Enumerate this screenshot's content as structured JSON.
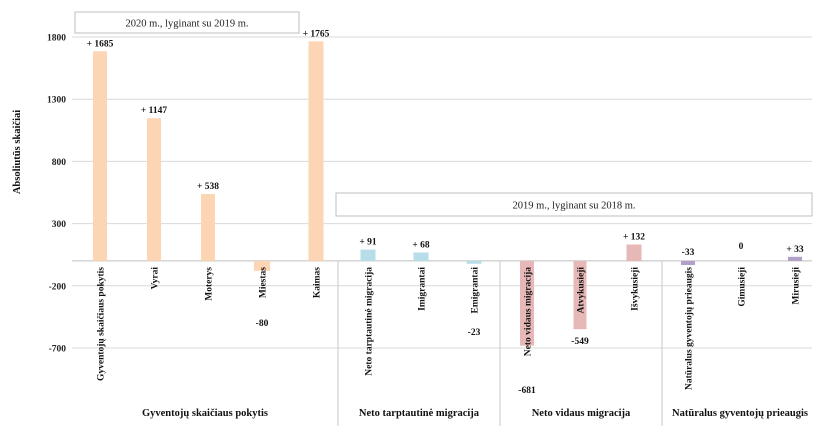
{
  "chart_data": {
    "type": "bar",
    "ylabel": "Absoliutūs skaičiai",
    "yticks": [
      1800,
      1300,
      800,
      300,
      -200,
      -700
    ],
    "ylim": [
      -700,
      1800
    ],
    "grid": "horizontal",
    "annotations": [
      "2020 m., lyginant su 2019 m.",
      "2019 m., lyginant su 2018 m."
    ],
    "categories": [
      "Gyventojų skaičiaus pokytis",
      "Vyrai",
      "Moterys",
      "Miestas",
      "Kaimas",
      "Neto tarptautinė migracija",
      "Imigrantai",
      "Emigrantai",
      "Neto vidaus migracija",
      "Atvykusieji",
      "Išvykusieji",
      "Natūralus gyventojų prieaugis",
      "Gimusieji",
      "Mirusieji"
    ],
    "values": [
      1685,
      1147,
      538,
      -80,
      1765,
      91,
      68,
      -23,
      -681,
      -549,
      132,
      -33,
      0,
      33
    ],
    "value_labels": [
      "+ 1685",
      "+ 1147",
      "+ 538",
      "-80",
      "+ 1765",
      "+ 91",
      "+ 68",
      "-23",
      "-681",
      "-549",
      "+ 132",
      "-33",
      "0",
      "+ 33"
    ],
    "colors": [
      "#fcd5b4",
      "#fcd5b4",
      "#fcd5b4",
      "#fcd5b4",
      "#fcd5b4",
      "#b7dee8",
      "#b7dee8",
      "#b7dee8",
      "#e6b9b8",
      "#e6b9b8",
      "#e6b9b8",
      "#b1a0c7",
      "#b1a0c7",
      "#b1a0c7"
    ],
    "groups": [
      {
        "label": "Gyventojų skaičiaus pokytis",
        "categories": [
          "Gyventojų skaičiaus pokytis",
          "Vyrai",
          "Moterys",
          "Miestas",
          "Kaimas"
        ]
      },
      {
        "label": "Neto tarptautinė migracija",
        "categories": [
          "Neto tarptautinė migracija",
          "Imigrantai",
          "Emigrantai"
        ]
      },
      {
        "label": "Neto vidaus migracija",
        "categories": [
          "Neto vidaus migracija",
          "Atvykusieji",
          "Išvykusieji"
        ]
      },
      {
        "label": "Natūralus gyventojų prieaugis",
        "categories": [
          "Natūralus gyventojų prieaugis",
          "Gimusieji",
          "Mirusieji"
        ]
      }
    ]
  }
}
